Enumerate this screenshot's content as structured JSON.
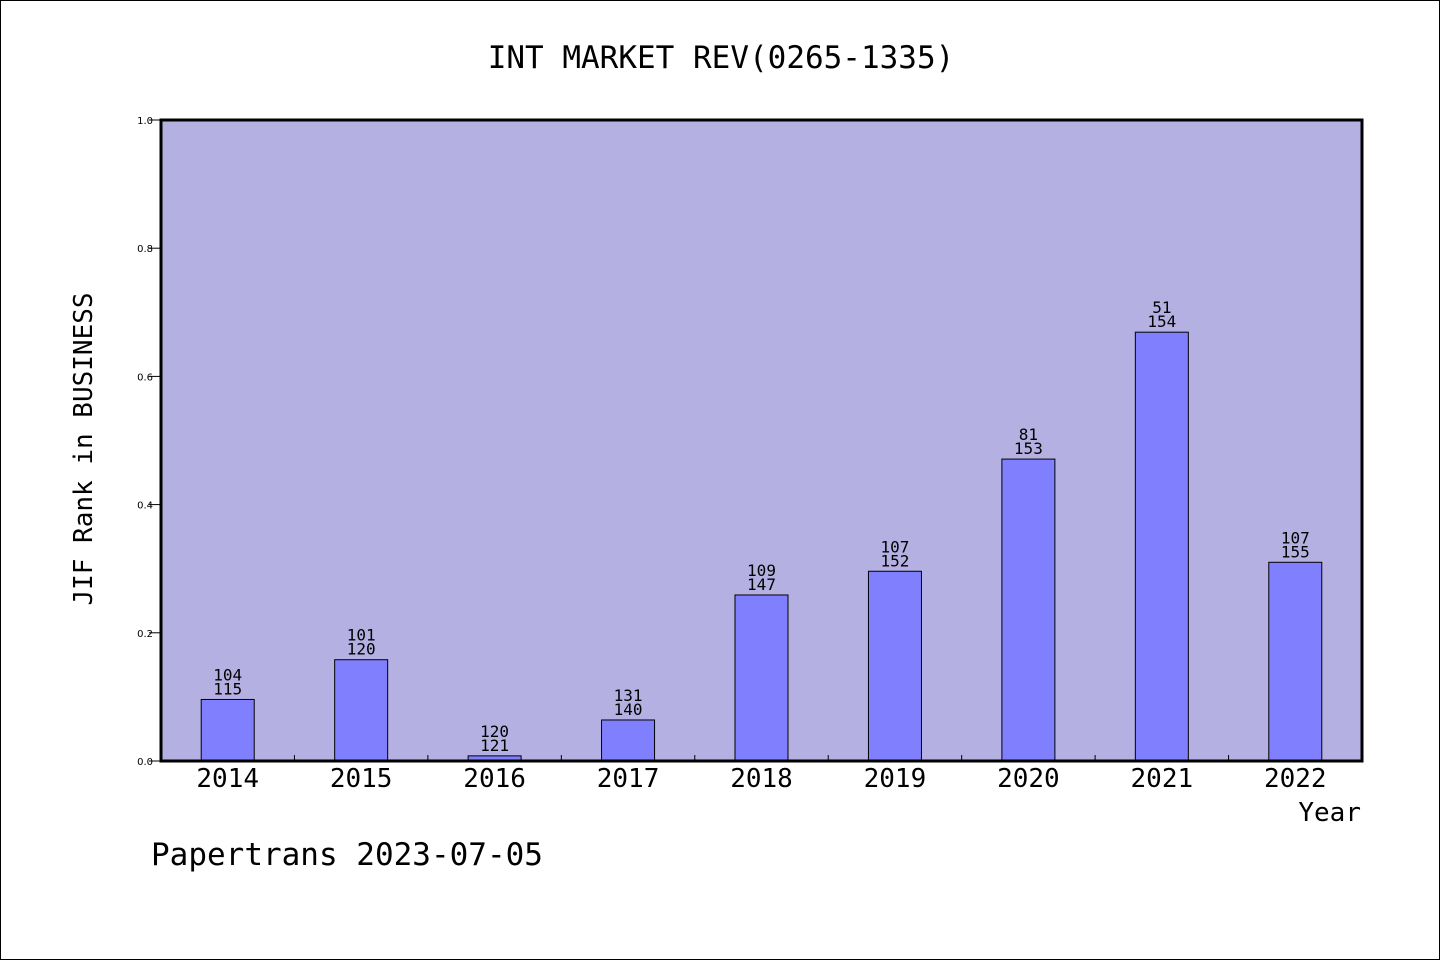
{
  "chart_data": {
    "type": "bar",
    "title": "INT MARKET REV(0265-1335)",
    "xlabel": "Year",
    "ylabel": "JIF Rank in BUSINESS",
    "ylim": [
      0,
      1.0
    ],
    "yticks": [
      "0.0",
      "0.2",
      "0.4",
      "0.6",
      "0.8",
      "1.0"
    ],
    "grid": false,
    "categories": [
      "2014",
      "2015",
      "2016",
      "2017",
      "2018",
      "2019",
      "2020",
      "2021",
      "2022"
    ],
    "values": [
      0.096,
      0.158,
      0.008,
      0.064,
      0.259,
      0.296,
      0.471,
      0.669,
      0.31
    ],
    "labels_top": [
      "104",
      "101",
      "120",
      "131",
      "109",
      "107",
      "81",
      "51",
      "107"
    ],
    "labels_bottom": [
      "115",
      "120",
      "121",
      "140",
      "147",
      "152",
      "153",
      "154",
      "155"
    ],
    "colors": {
      "plot_background": "#b5b0e2",
      "bar_fill": "#8080ff",
      "bar_stroke": "#000000"
    }
  },
  "footer": {
    "credit": "Papertrans 2023-07-05"
  }
}
